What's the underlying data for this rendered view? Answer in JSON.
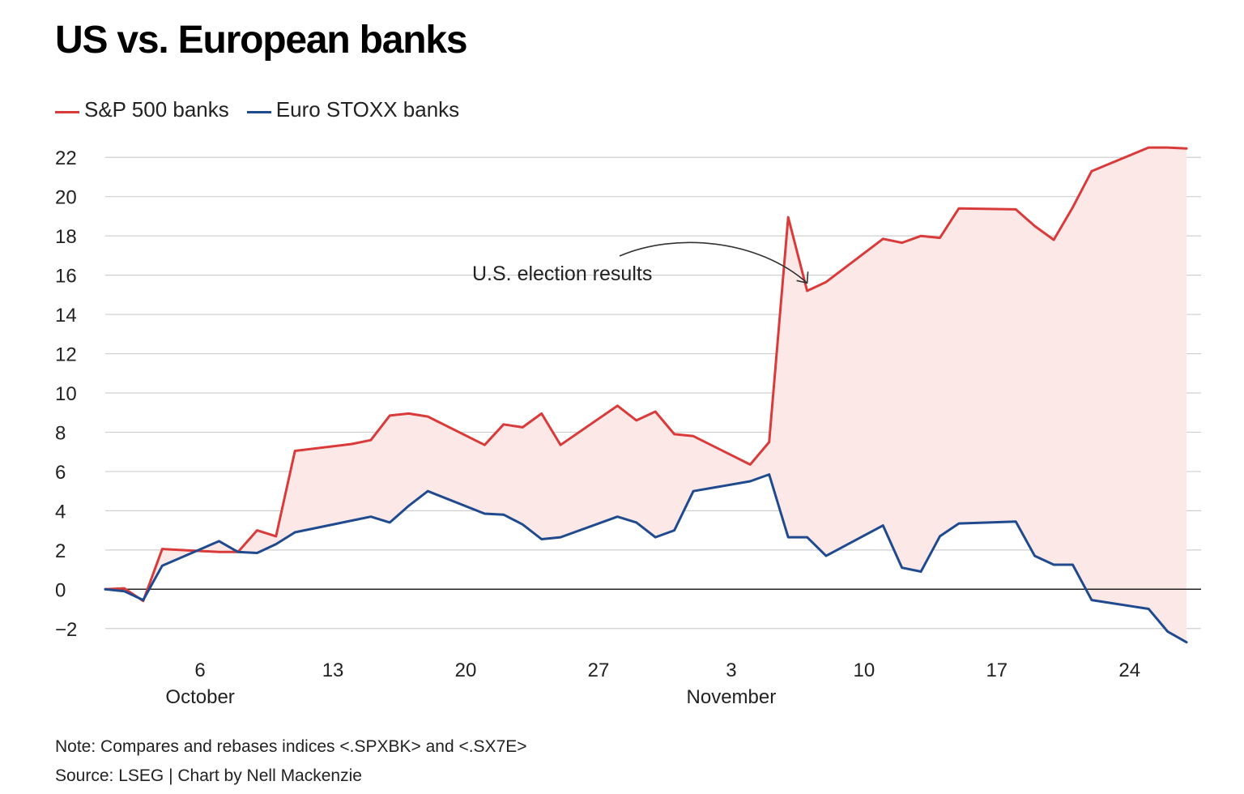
{
  "title": "US vs. European banks",
  "note": "Note: Compares and rebases indices <.SPXBK> and <.SX7E>",
  "source": "Source: LSEG | Chart by Nell Mackenzie",
  "chart_data": {
    "type": "line",
    "title": "US vs. European banks",
    "xlabel": "",
    "ylabel": "",
    "ylim": [
      -3,
      23
    ],
    "yticks": [
      -2,
      0,
      2,
      4,
      6,
      8,
      10,
      12,
      14,
      16,
      18,
      20,
      22
    ],
    "ytick_labels": [
      "−2",
      "0",
      "2",
      "4",
      "6",
      "8",
      "10",
      "12",
      "14",
      "16",
      "18",
      "20",
      "22"
    ],
    "xlim": [
      "2024-10-01",
      "2024-11-27"
    ],
    "xticks": [
      {
        "date": "2024-10-06",
        "label": "6",
        "sublabel": "October"
      },
      {
        "date": "2024-10-13",
        "label": "13",
        "sublabel": ""
      },
      {
        "date": "2024-10-20",
        "label": "20",
        "sublabel": ""
      },
      {
        "date": "2024-10-27",
        "label": "27",
        "sublabel": ""
      },
      {
        "date": "2024-11-03",
        "label": "3",
        "sublabel": "November"
      },
      {
        "date": "2024-11-10",
        "label": "10",
        "sublabel": ""
      },
      {
        "date": "2024-11-17",
        "label": "17",
        "sublabel": ""
      },
      {
        "date": "2024-11-24",
        "label": "24",
        "sublabel": ""
      }
    ],
    "grid": true,
    "legend_position": "top-left",
    "fill_between_series": true,
    "fill_color": "#fde8e8",
    "series": [
      {
        "name": "S&P 500 banks",
        "color": "#d93b3b",
        "points": [
          [
            "2024-10-01",
            0
          ],
          [
            "2024-10-02",
            0.05
          ],
          [
            "2024-10-03",
            -0.6
          ],
          [
            "2024-10-04",
            2.05
          ],
          [
            "2024-10-07",
            1.9
          ],
          [
            "2024-10-08",
            1.9
          ],
          [
            "2024-10-09",
            3.0
          ],
          [
            "2024-10-10",
            2.7
          ],
          [
            "2024-10-11",
            7.05
          ],
          [
            "2024-10-14",
            7.4
          ],
          [
            "2024-10-15",
            7.6
          ],
          [
            "2024-10-16",
            8.85
          ],
          [
            "2024-10-17",
            8.95
          ],
          [
            "2024-10-18",
            8.8
          ],
          [
            "2024-10-21",
            7.35
          ],
          [
            "2024-10-22",
            8.4
          ],
          [
            "2024-10-23",
            8.25
          ],
          [
            "2024-10-24",
            8.95
          ],
          [
            "2024-10-25",
            7.35
          ],
          [
            "2024-10-28",
            9.35
          ],
          [
            "2024-10-29",
            8.6
          ],
          [
            "2024-10-30",
            9.05
          ],
          [
            "2024-10-31",
            7.9
          ],
          [
            "2024-11-01",
            7.8
          ],
          [
            "2024-11-04",
            6.35
          ],
          [
            "2024-11-05",
            7.5
          ],
          [
            "2024-11-06",
            18.95
          ],
          [
            "2024-11-07",
            15.2
          ],
          [
            "2024-11-08",
            15.65
          ],
          [
            "2024-11-11",
            17.85
          ],
          [
            "2024-11-12",
            17.65
          ],
          [
            "2024-11-13",
            18.0
          ],
          [
            "2024-11-14",
            17.9
          ],
          [
            "2024-11-15",
            19.4
          ],
          [
            "2024-11-18",
            19.35
          ],
          [
            "2024-11-19",
            18.5
          ],
          [
            "2024-11-20",
            17.8
          ],
          [
            "2024-11-21",
            19.45
          ],
          [
            "2024-11-22",
            21.3
          ],
          [
            "2024-11-25",
            22.5
          ],
          [
            "2024-11-26",
            22.5
          ],
          [
            "2024-11-27",
            22.45
          ]
        ]
      },
      {
        "name": "Euro STOXX banks",
        "color": "#1f4b8e",
        "points": [
          [
            "2024-10-01",
            0
          ],
          [
            "2024-10-02",
            -0.1
          ],
          [
            "2024-10-03",
            -0.55
          ],
          [
            "2024-10-04",
            1.2
          ],
          [
            "2024-10-07",
            2.45
          ],
          [
            "2024-10-08",
            1.9
          ],
          [
            "2024-10-09",
            1.85
          ],
          [
            "2024-10-10",
            2.3
          ],
          [
            "2024-10-11",
            2.9
          ],
          [
            "2024-10-14",
            3.5
          ],
          [
            "2024-10-15",
            3.7
          ],
          [
            "2024-10-16",
            3.4
          ],
          [
            "2024-10-17",
            4.25
          ],
          [
            "2024-10-18",
            5.0
          ],
          [
            "2024-10-21",
            3.85
          ],
          [
            "2024-10-22",
            3.8
          ],
          [
            "2024-10-23",
            3.3
          ],
          [
            "2024-10-24",
            2.55
          ],
          [
            "2024-10-25",
            2.65
          ],
          [
            "2024-10-28",
            3.7
          ],
          [
            "2024-10-29",
            3.4
          ],
          [
            "2024-10-30",
            2.65
          ],
          [
            "2024-10-31",
            3.0
          ],
          [
            "2024-11-01",
            5.0
          ],
          [
            "2024-11-04",
            5.5
          ],
          [
            "2024-11-05",
            5.85
          ],
          [
            "2024-11-06",
            2.65
          ],
          [
            "2024-11-07",
            2.65
          ],
          [
            "2024-11-08",
            1.7
          ],
          [
            "2024-11-11",
            3.25
          ],
          [
            "2024-11-12",
            1.1
          ],
          [
            "2024-11-13",
            0.9
          ],
          [
            "2024-11-14",
            2.7
          ],
          [
            "2024-11-15",
            3.35
          ],
          [
            "2024-11-18",
            3.45
          ],
          [
            "2024-11-19",
            1.7
          ],
          [
            "2024-11-20",
            1.25
          ],
          [
            "2024-11-21",
            1.25
          ],
          [
            "2024-11-22",
            -0.55
          ],
          [
            "2024-11-25",
            -1.0
          ],
          [
            "2024-11-26",
            -2.15
          ],
          [
            "2024-11-27",
            -2.7
          ]
        ]
      }
    ],
    "annotations": [
      {
        "text": "U.S. election results",
        "x": "2024-11-07",
        "y": 15.6
      }
    ]
  }
}
